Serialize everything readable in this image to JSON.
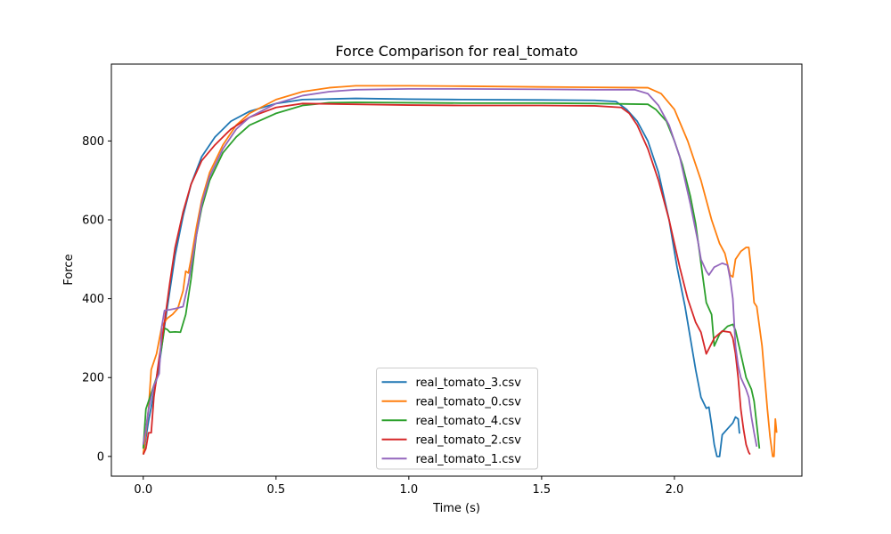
{
  "chart_data": {
    "type": "line",
    "title": "Force Comparison for real_tomato",
    "xlabel": "Time (s)",
    "ylabel": "Force",
    "xlim": [
      -0.12,
      2.48
    ],
    "ylim": [
      -50,
      995
    ],
    "xticks": [
      0.0,
      0.5,
      1.0,
      1.5,
      2.0
    ],
    "xtick_labels": [
      "0.0",
      "0.5",
      "1.0",
      "1.5",
      "2.0"
    ],
    "yticks": [
      0,
      200,
      400,
      600,
      800
    ],
    "ytick_labels": [
      "0",
      "200",
      "400",
      "600",
      "800"
    ],
    "grid": false,
    "legend_position": "lower center",
    "series": [
      {
        "name": "real_tomato_3.csv",
        "color": "#1f77b4",
        "points": [
          [
            0.0,
            5
          ],
          [
            0.02,
            90
          ],
          [
            0.04,
            160
          ],
          [
            0.06,
            230
          ],
          [
            0.08,
            330
          ],
          [
            0.1,
            420
          ],
          [
            0.12,
            510
          ],
          [
            0.15,
            610
          ],
          [
            0.18,
            690
          ],
          [
            0.22,
            760
          ],
          [
            0.27,
            810
          ],
          [
            0.33,
            850
          ],
          [
            0.4,
            875
          ],
          [
            0.5,
            895
          ],
          [
            0.6,
            905
          ],
          [
            0.8,
            908
          ],
          [
            1.0,
            906
          ],
          [
            1.2,
            905
          ],
          [
            1.5,
            904
          ],
          [
            1.7,
            903
          ],
          [
            1.78,
            900
          ],
          [
            1.82,
            880
          ],
          [
            1.86,
            850
          ],
          [
            1.9,
            800
          ],
          [
            1.94,
            720
          ],
          [
            1.98,
            600
          ],
          [
            2.01,
            480
          ],
          [
            2.04,
            380
          ],
          [
            2.06,
            300
          ],
          [
            2.08,
            220
          ],
          [
            2.1,
            150
          ],
          [
            2.12,
            122
          ],
          [
            2.13,
            125
          ],
          [
            2.14,
            80
          ],
          [
            2.15,
            30
          ],
          [
            2.16,
            0
          ],
          [
            2.17,
            0
          ],
          [
            2.18,
            55
          ],
          [
            2.2,
            70
          ],
          [
            2.22,
            85
          ],
          [
            2.23,
            100
          ],
          [
            2.24,
            95
          ],
          [
            2.245,
            58
          ]
        ]
      },
      {
        "name": "real_tomato_0.csv",
        "color": "#ff7f0e",
        "points": [
          [
            0.0,
            5
          ],
          [
            0.02,
            120
          ],
          [
            0.03,
            220
          ],
          [
            0.05,
            260
          ],
          [
            0.07,
            330
          ],
          [
            0.09,
            350
          ],
          [
            0.11,
            360
          ],
          [
            0.13,
            375
          ],
          [
            0.15,
            420
          ],
          [
            0.16,
            470
          ],
          [
            0.17,
            465
          ],
          [
            0.18,
            500
          ],
          [
            0.2,
            580
          ],
          [
            0.22,
            650
          ],
          [
            0.25,
            720
          ],
          [
            0.3,
            790
          ],
          [
            0.35,
            840
          ],
          [
            0.4,
            870
          ],
          [
            0.5,
            905
          ],
          [
            0.6,
            925
          ],
          [
            0.7,
            935
          ],
          [
            0.8,
            940
          ],
          [
            1.0,
            940
          ],
          [
            1.2,
            939
          ],
          [
            1.5,
            937
          ],
          [
            1.7,
            936
          ],
          [
            1.9,
            935
          ],
          [
            1.95,
            920
          ],
          [
            2.0,
            880
          ],
          [
            2.05,
            800
          ],
          [
            2.1,
            700
          ],
          [
            2.14,
            600
          ],
          [
            2.17,
            540
          ],
          [
            2.19,
            515
          ],
          [
            2.21,
            460
          ],
          [
            2.22,
            455
          ],
          [
            2.23,
            500
          ],
          [
            2.25,
            520
          ],
          [
            2.27,
            530
          ],
          [
            2.28,
            530
          ],
          [
            2.29,
            470
          ],
          [
            2.3,
            390
          ],
          [
            2.31,
            380
          ],
          [
            2.32,
            330
          ],
          [
            2.33,
            280
          ],
          [
            2.34,
            200
          ],
          [
            2.35,
            120
          ],
          [
            2.36,
            50
          ],
          [
            2.37,
            0
          ],
          [
            2.375,
            0
          ],
          [
            2.38,
            95
          ],
          [
            2.385,
            60
          ]
        ]
      },
      {
        "name": "real_tomato_4.csv",
        "color": "#2ca02c",
        "points": [
          [
            0.0,
            20
          ],
          [
            0.01,
            120
          ],
          [
            0.03,
            160
          ],
          [
            0.05,
            200
          ],
          [
            0.07,
            280
          ],
          [
            0.08,
            325
          ],
          [
            0.09,
            322
          ],
          [
            0.1,
            315
          ],
          [
            0.12,
            316
          ],
          [
            0.14,
            315
          ],
          [
            0.16,
            360
          ],
          [
            0.18,
            450
          ],
          [
            0.2,
            560
          ],
          [
            0.22,
            630
          ],
          [
            0.25,
            700
          ],
          [
            0.3,
            770
          ],
          [
            0.35,
            810
          ],
          [
            0.4,
            840
          ],
          [
            0.5,
            870
          ],
          [
            0.6,
            890
          ],
          [
            0.7,
            897
          ],
          [
            0.8,
            898
          ],
          [
            1.0,
            897
          ],
          [
            1.2,
            896
          ],
          [
            1.5,
            896
          ],
          [
            1.7,
            895
          ],
          [
            1.9,
            893
          ],
          [
            1.93,
            880
          ],
          [
            1.97,
            850
          ],
          [
            2.0,
            800
          ],
          [
            2.03,
            740
          ],
          [
            2.06,
            660
          ],
          [
            2.08,
            590
          ],
          [
            2.1,
            490
          ],
          [
            2.12,
            390
          ],
          [
            2.14,
            360
          ],
          [
            2.15,
            280
          ],
          [
            2.17,
            310
          ],
          [
            2.2,
            330
          ],
          [
            2.22,
            335
          ],
          [
            2.23,
            320
          ],
          [
            2.25,
            260
          ],
          [
            2.27,
            200
          ],
          [
            2.29,
            170
          ],
          [
            2.3,
            140
          ],
          [
            2.31,
            80
          ],
          [
            2.32,
            20
          ]
        ]
      },
      {
        "name": "real_tomato_2.csv",
        "color": "#d62728",
        "points": [
          [
            0.0,
            5
          ],
          [
            0.01,
            20
          ],
          [
            0.02,
            60
          ],
          [
            0.03,
            60
          ],
          [
            0.04,
            150
          ],
          [
            0.06,
            250
          ],
          [
            0.08,
            340
          ],
          [
            0.1,
            440
          ],
          [
            0.12,
            530
          ],
          [
            0.15,
            620
          ],
          [
            0.18,
            690
          ],
          [
            0.22,
            750
          ],
          [
            0.27,
            790
          ],
          [
            0.33,
            830
          ],
          [
            0.4,
            860
          ],
          [
            0.5,
            885
          ],
          [
            0.6,
            895
          ],
          [
            0.8,
            893
          ],
          [
            1.0,
            891
          ],
          [
            1.2,
            890
          ],
          [
            1.5,
            890
          ],
          [
            1.7,
            889
          ],
          [
            1.8,
            885
          ],
          [
            1.83,
            870
          ],
          [
            1.86,
            840
          ],
          [
            1.9,
            780
          ],
          [
            1.94,
            700
          ],
          [
            1.98,
            600
          ],
          [
            2.02,
            480
          ],
          [
            2.05,
            400
          ],
          [
            2.08,
            340
          ],
          [
            2.1,
            315
          ],
          [
            2.12,
            260
          ],
          [
            2.15,
            300
          ],
          [
            2.18,
            318
          ],
          [
            2.21,
            315
          ],
          [
            2.22,
            300
          ],
          [
            2.23,
            260
          ],
          [
            2.24,
            200
          ],
          [
            2.25,
            120
          ],
          [
            2.26,
            70
          ],
          [
            2.27,
            30
          ],
          [
            2.28,
            10
          ],
          [
            2.285,
            5
          ]
        ]
      },
      {
        "name": "real_tomato_1.csv",
        "color": "#9467bd",
        "points": [
          [
            0.0,
            30
          ],
          [
            0.01,
            70
          ],
          [
            0.02,
            120
          ],
          [
            0.04,
            180
          ],
          [
            0.06,
            210
          ],
          [
            0.07,
            330
          ],
          [
            0.08,
            370
          ],
          [
            0.1,
            372
          ],
          [
            0.12,
            375
          ],
          [
            0.15,
            380
          ],
          [
            0.17,
            440
          ],
          [
            0.2,
            560
          ],
          [
            0.22,
            640
          ],
          [
            0.25,
            710
          ],
          [
            0.3,
            780
          ],
          [
            0.35,
            830
          ],
          [
            0.4,
            860
          ],
          [
            0.5,
            895
          ],
          [
            0.6,
            915
          ],
          [
            0.7,
            925
          ],
          [
            0.8,
            930
          ],
          [
            1.0,
            932
          ],
          [
            1.2,
            932
          ],
          [
            1.5,
            931
          ],
          [
            1.7,
            930
          ],
          [
            1.85,
            930
          ],
          [
            1.9,
            920
          ],
          [
            1.94,
            890
          ],
          [
            1.98,
            840
          ],
          [
            2.02,
            760
          ],
          [
            2.06,
            640
          ],
          [
            2.09,
            540
          ],
          [
            2.1,
            500
          ],
          [
            2.12,
            470
          ],
          [
            2.13,
            460
          ],
          [
            2.15,
            480
          ],
          [
            2.18,
            490
          ],
          [
            2.2,
            485
          ],
          [
            2.21,
            450
          ],
          [
            2.22,
            400
          ],
          [
            2.23,
            280
          ],
          [
            2.24,
            230
          ],
          [
            2.25,
            200
          ],
          [
            2.27,
            170
          ],
          [
            2.28,
            150
          ],
          [
            2.29,
            100
          ],
          [
            2.3,
            60
          ],
          [
            2.31,
            25
          ]
        ]
      }
    ]
  }
}
